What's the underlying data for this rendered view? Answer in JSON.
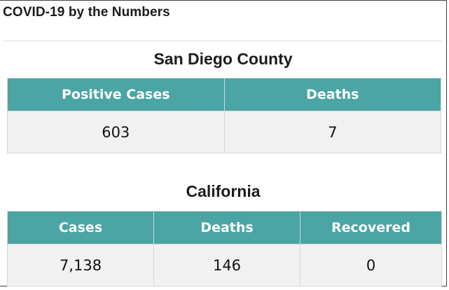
{
  "page": {
    "title": "COVID-19 by the Numbers"
  },
  "colors": {
    "header_bg": "#4aa5a4",
    "header_text": "#ffffff",
    "cell_bg": "#f1f1f1"
  },
  "san_diego": {
    "heading": "San Diego County",
    "columns": [
      "Positive Cases",
      "Deaths"
    ],
    "values": [
      "603",
      "7"
    ]
  },
  "california": {
    "heading": "California",
    "columns": [
      "Cases",
      "Deaths",
      "Recovered"
    ],
    "values": [
      "7,138",
      "146",
      "0"
    ]
  }
}
